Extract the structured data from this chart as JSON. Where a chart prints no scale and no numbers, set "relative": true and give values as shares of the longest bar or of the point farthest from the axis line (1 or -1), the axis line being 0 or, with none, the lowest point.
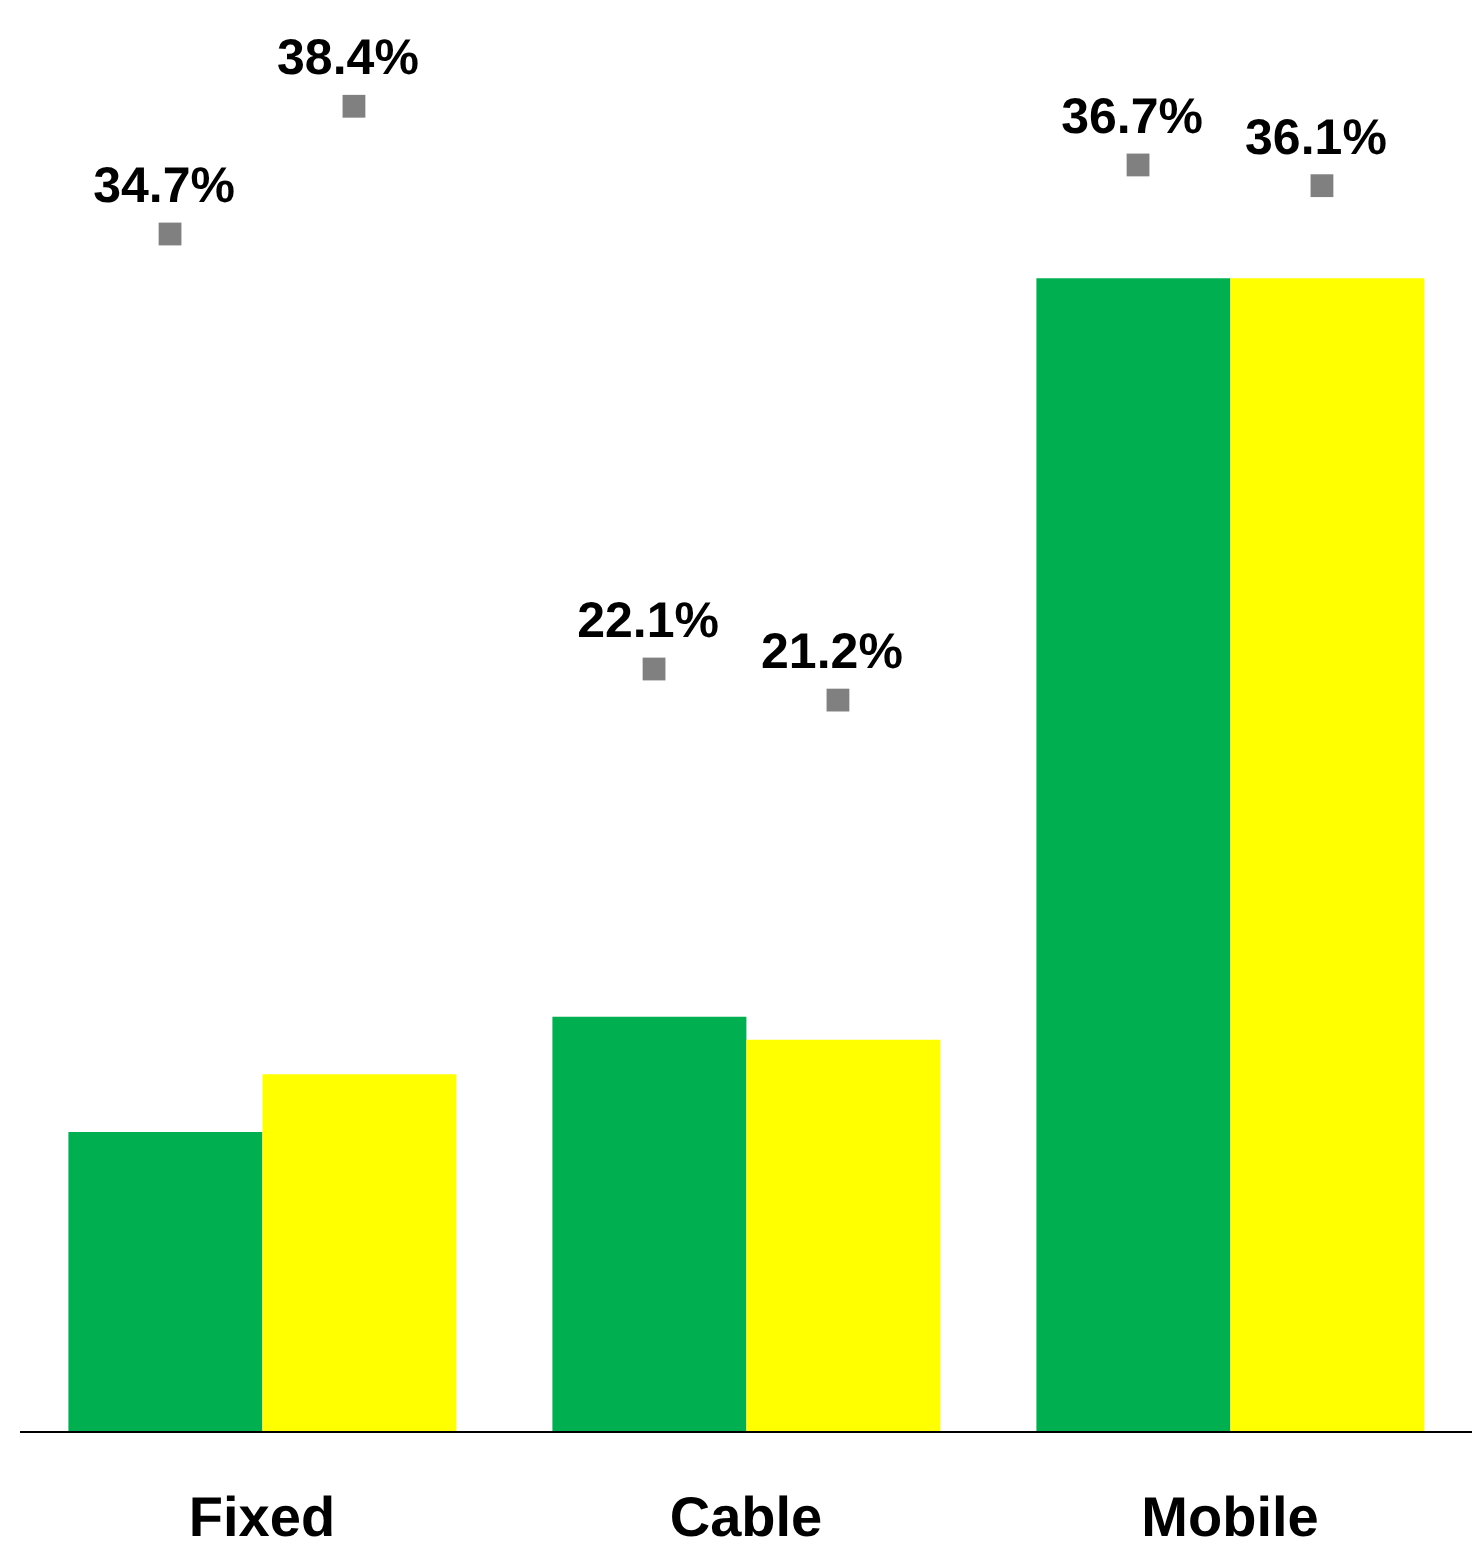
{
  "chart_data": [
    {
      "type": "bar",
      "relative": true,
      "categories": [
        "Fixed",
        "Cable",
        "Mobile"
      ],
      "series": [
        {
          "color": "#00b050",
          "values": [
            0.26,
            0.36,
            1
          ]
        },
        {
          "color": "#ffff00",
          "values": [
            0.31,
            0.34,
            1
          ]
        }
      ]
    },
    {
      "type": "scatter",
      "categories": [
        null,
        null,
        null
      ],
      "marker": "square",
      "series": [
        {
          "color": "#808080",
          "values": [
            34.7,
            22.1,
            36.7
          ],
          "value_labels": [
            "34.7%",
            "22.1%",
            "36.7%"
          ]
        },
        {
          "color": "#808080",
          "values": [
            38.4,
            21.2,
            36.1
          ],
          "value_labels": [
            "38.4%",
            "21.2%",
            "36.1%"
          ]
        }
      ]
    }
  ]
}
